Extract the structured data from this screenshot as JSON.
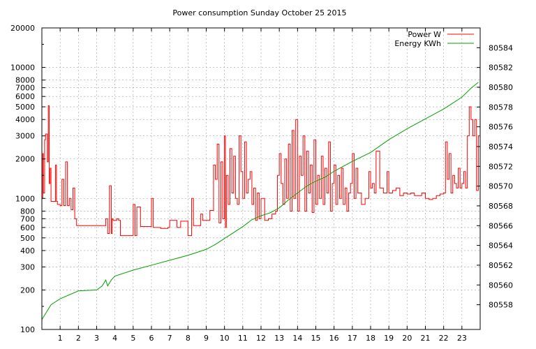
{
  "chart_data": {
    "type": "line",
    "title": "Power consumption Sunday October 25 2015",
    "xlabel": "",
    "ylabel": "",
    "y2label": "",
    "x_range": [
      0,
      24
    ],
    "x_ticks": [
      1,
      2,
      3,
      4,
      5,
      6,
      7,
      8,
      9,
      10,
      11,
      12,
      13,
      14,
      15,
      16,
      17,
      18,
      19,
      20,
      21,
      22,
      23
    ],
    "y_scale": "log",
    "y_range": [
      100,
      20000
    ],
    "y_ticks": [
      100,
      200,
      300,
      400,
      500,
      600,
      700,
      800,
      1000,
      2000,
      3000,
      4000,
      5000,
      6000,
      7000,
      8000,
      10000,
      20000
    ],
    "y2_range": [
      80555.5,
      80586
    ],
    "y2_ticks": [
      80558,
      80560,
      80562,
      80564,
      80566,
      80568,
      80570,
      80572,
      80574,
      80576,
      80578,
      80580,
      80582,
      80584
    ],
    "grid": true,
    "legend_position": "top-right",
    "colors": {
      "power": "#ff0000",
      "energy": "#00a000"
    },
    "series": [
      {
        "name": "Power W",
        "axis": "left",
        "x": [
          0,
          0.05,
          0.08,
          0.15,
          0.2,
          0.25,
          0.3,
          0.35,
          0.4,
          0.45,
          0.5,
          0.6,
          0.7,
          0.75,
          0.8,
          0.85,
          0.9,
          1.0,
          1.05,
          1.1,
          1.2,
          1.3,
          1.4,
          1.5,
          1.55,
          1.6,
          1.7,
          1.8,
          1.9,
          1.95,
          2.0,
          2.05,
          2.1,
          2.5,
          3.0,
          3.3,
          3.4,
          3.5,
          3.6,
          3.7,
          3.8,
          3.85,
          3.9,
          4.1,
          4.2,
          4.3,
          4.4,
          4.5,
          4.8,
          5.0,
          5.1,
          5.2,
          5.4,
          5.6,
          5.8,
          6.0,
          6.1,
          6.3,
          6.5,
          6.7,
          6.9,
          7.0,
          7.2,
          7.4,
          7.6,
          7.8,
          8.0,
          8.2,
          8.3,
          8.5,
          8.7,
          8.8,
          9.0,
          9.2,
          9.4,
          9.5,
          9.6,
          9.7,
          9.8,
          9.9,
          10.0,
          10.05,
          10.1,
          10.2,
          10.3,
          10.4,
          10.5,
          10.6,
          10.7,
          10.8,
          10.9,
          11.0,
          11.1,
          11.2,
          11.3,
          11.4,
          11.5,
          11.6,
          11.7,
          11.8,
          11.9,
          12.0,
          12.2,
          12.4,
          12.6,
          12.8,
          12.9,
          13.0,
          13.1,
          13.2,
          13.3,
          13.4,
          13.5,
          13.6,
          13.7,
          13.8,
          13.9,
          14.0,
          14.1,
          14.2,
          14.3,
          14.4,
          14.5,
          14.6,
          14.7,
          14.8,
          14.9,
          15.0,
          15.1,
          15.2,
          15.3,
          15.4,
          15.5,
          15.6,
          15.7,
          15.8,
          15.9,
          16.0,
          16.1,
          16.2,
          16.3,
          16.4,
          16.5,
          16.6,
          16.7,
          16.8,
          16.9,
          17.0,
          17.1,
          17.2,
          17.3,
          17.5,
          17.7,
          17.9,
          18.0,
          18.1,
          18.2,
          18.3,
          18.5,
          18.7,
          18.9,
          19.0,
          19.2,
          19.4,
          19.6,
          19.8,
          20.0,
          20.2,
          20.4,
          20.6,
          20.8,
          21.0,
          21.2,
          21.4,
          21.6,
          21.8,
          22.0,
          22.1,
          22.2,
          22.3,
          22.4,
          22.5,
          22.6,
          22.7,
          22.8,
          22.9,
          23.0,
          23.1,
          23.2,
          23.3,
          23.4,
          23.5,
          23.6,
          23.7,
          23.8,
          23.9
        ],
        "values": [
          1000,
          2200,
          1100,
          2800,
          3100,
          3100,
          1900,
          5100,
          1300,
          1700,
          950,
          950,
          950,
          1800,
          950,
          900,
          900,
          880,
          880,
          1400,
          880,
          1900,
          880,
          1000,
          1000,
          820,
          1200,
          700,
          620,
          620,
          620,
          620,
          620,
          620,
          620,
          620,
          620,
          700,
          540,
          1250,
          540,
          700,
          680,
          700,
          680,
          520,
          520,
          520,
          520,
          900,
          520,
          860,
          610,
          610,
          610,
          1000,
          600,
          600,
          590,
          590,
          600,
          680,
          680,
          600,
          670,
          670,
          520,
          1000,
          620,
          620,
          760,
          680,
          680,
          810,
          1800,
          1400,
          2600,
          650,
          1900,
          700,
          3000,
          600,
          1500,
          900,
          2400,
          1100,
          2100,
          1000,
          900,
          3000,
          1600,
          1000,
          2700,
          1100,
          1400,
          1600,
          900,
          1200,
          680,
          1100,
          700,
          1000,
          680,
          700,
          760,
          800,
          1500,
          2200,
          1300,
          900,
          2000,
          1000,
          2600,
          800,
          3300,
          1000,
          4000,
          800,
          2100,
          1500,
          3000,
          800,
          2300,
          1100,
          1800,
          780,
          2800,
          900,
          1500,
          1000,
          2100,
          900,
          1700,
          1100,
          2700,
          800,
          1300,
          1800,
          900,
          1500,
          1000,
          1700,
          900,
          1200,
          800,
          1100,
          1300,
          2200,
          1000,
          1700,
          1100,
          900,
          1000,
          1600,
          1200,
          1300,
          1100,
          2300,
          1200,
          1100,
          1600,
          1100,
          1150,
          1200,
          1050,
          1100,
          1080,
          1100,
          1050,
          1050,
          1100,
          1000,
          980,
          1000,
          1050,
          1080,
          1100,
          2700,
          1400,
          2200,
          1100,
          1500,
          1300,
          1200,
          1700,
          1200,
          1300,
          1600,
          1200,
          3000,
          5000,
          4000,
          3000,
          4000,
          1150,
          3000
        ]
      },
      {
        "name": "Energy KWh",
        "axis": "right",
        "x": [
          0,
          0.5,
          1.0,
          2.0,
          3.0,
          3.3,
          3.5,
          3.6,
          3.8,
          4.0,
          5.0,
          6.0,
          7.0,
          8.0,
          9.0,
          9.5,
          10.0,
          10.5,
          11.0,
          11.5,
          12.0,
          12.5,
          13.0,
          13.5,
          14.0,
          14.5,
          15.0,
          15.5,
          16.0,
          17.0,
          18.0,
          19.0,
          20.0,
          21.0,
          22.0,
          22.5,
          23.0,
          23.5,
          23.9
        ],
        "values": [
          80556.5,
          80558,
          80558.6,
          80559.4,
          80559.5,
          80559.9,
          80560.5,
          80559.9,
          80560.5,
          80560.9,
          80561.5,
          80562,
          80562.5,
          80563,
          80563.6,
          80564.1,
          80564.7,
          80565.3,
          80565.9,
          80566.6,
          80567,
          80567.3,
          80567.8,
          80568.6,
          80569.3,
          80570,
          80570.5,
          80570.9,
          80571.5,
          80572.5,
          80573.4,
          80574.7,
          80575.8,
          80576.8,
          80577.8,
          80578.4,
          80579,
          80579.9,
          80580.5
        ]
      }
    ]
  }
}
